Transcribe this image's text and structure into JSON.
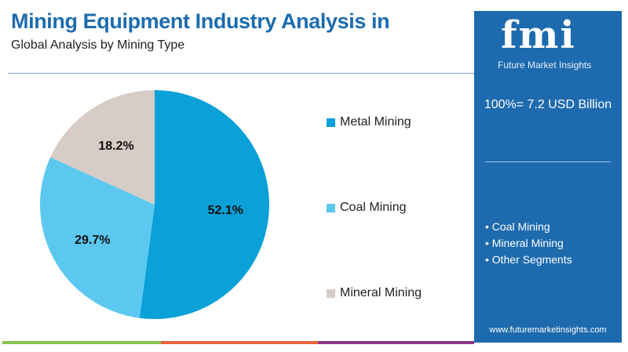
{
  "header": {
    "title": "Mining Equipment Industry Analysis in",
    "subtitle": "Global Analysis by Mining Type"
  },
  "chart_data": {
    "type": "pie",
    "categories": [
      "Metal Mining",
      "Coal Mining",
      "Mineral Mining"
    ],
    "values": [
      52.1,
      29.7,
      18.2
    ],
    "labels": [
      "52.1%",
      "29.7%",
      "18.2%"
    ],
    "colors": [
      "#0aa0d8",
      "#5cc8ef",
      "#d7ccc6"
    ],
    "legend": "right"
  },
  "panel": {
    "logo": "fmi",
    "logo_sub": "Future Market Insights",
    "total": "100%= 7.2 USD Billion",
    "bullets": [
      "• Coal Mining",
      "• Mineral Mining",
      "• Other Segments"
    ],
    "url": "www.futuremarketinsights.com"
  },
  "colors": {
    "brand": "#1d6aae",
    "bar": [
      "#8cc152",
      "#e9663a",
      "#8e3590"
    ]
  }
}
